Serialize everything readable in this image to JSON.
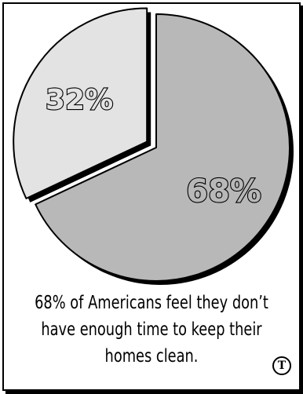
{
  "chart_data": {
    "type": "pie",
    "categories": [
      "68%",
      "32%"
    ],
    "values": [
      68,
      32
    ],
    "labels": [
      "68%",
      "32%"
    ],
    "colors": [
      "#b8b8b8",
      "#e3e3e3"
    ],
    "exploded": "32%",
    "caption_lines": [
      "68% of Americans feel they don’t",
      "have enough time to keep their",
      "homes clean."
    ]
  },
  "logo": {
    "icon": "trademark-logo-icon",
    "glyph": "T"
  }
}
